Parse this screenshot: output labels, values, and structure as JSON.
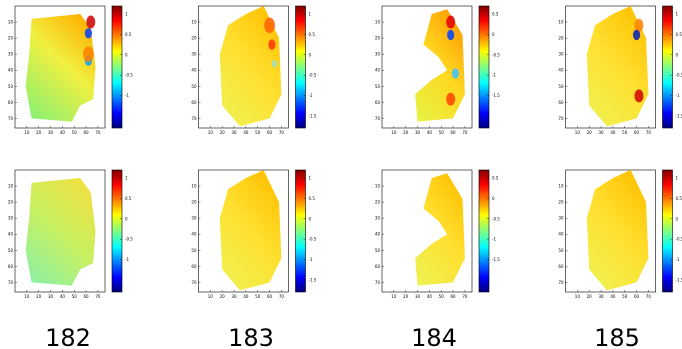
{
  "axes": {
    "xlim": [
      0,
      76
    ],
    "ylim": [
      0,
      76
    ],
    "xticks": [
      10,
      20,
      30,
      40,
      50,
      60,
      70
    ],
    "yticks": [
      10,
      20,
      30,
      40,
      50,
      60,
      70
    ]
  },
  "colorbars": [
    [
      1,
      0.5,
      0,
      -0.5,
      -1
    ],
    [
      1,
      0.5,
      0,
      -0.5,
      -1,
      -1.5
    ],
    [
      0.5,
      0,
      -0.5,
      -1,
      -1.5
    ],
    [
      1,
      0.5,
      0,
      -0.5,
      -1,
      -1.5
    ],
    [
      1,
      0.5,
      0,
      -0.5,
      -1
    ],
    [
      1,
      0.5,
      0,
      -0.5,
      -1,
      -1.5
    ],
    [
      0.5,
      0,
      -0.5,
      -1,
      -1.5
    ],
    [
      1,
      0.5,
      0,
      -0.5,
      -1,
      -1.5
    ]
  ],
  "labels": [
    "182",
    "183",
    "184",
    "185"
  ]
}
